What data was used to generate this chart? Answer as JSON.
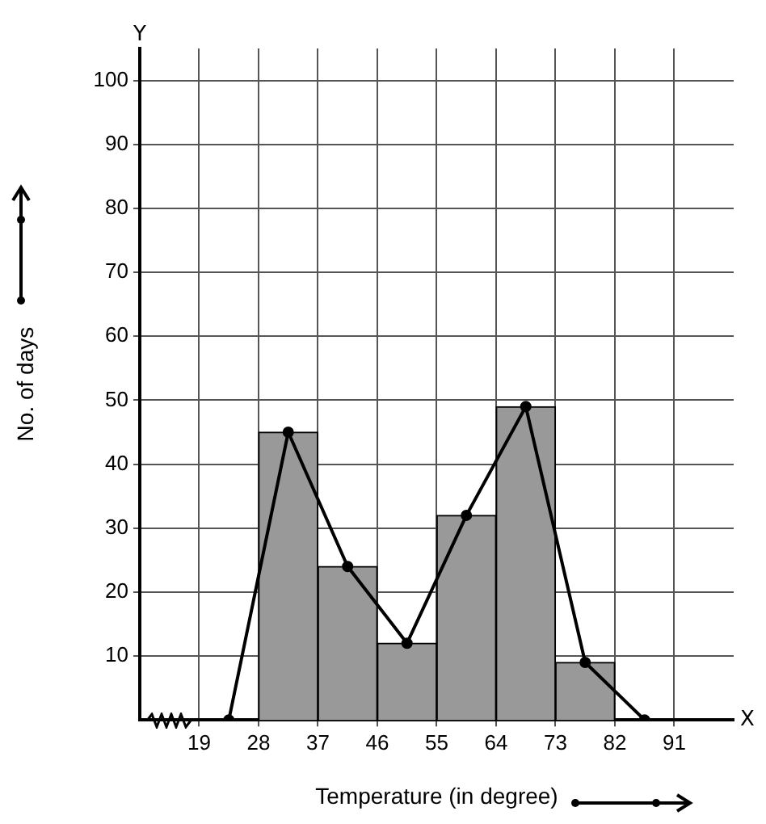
{
  "chart_data": {
    "type": "histogram",
    "xlabel": "Temperature (in degree)",
    "ylabel": "No. of days",
    "bins": [
      28,
      37,
      46,
      55,
      64,
      73,
      82
    ],
    "values": [
      45,
      24,
      12,
      32,
      49,
      9
    ],
    "color": "#999999",
    "series": [
      {
        "type": "line",
        "x": [
          23.5,
          32.5,
          41.5,
          50.5,
          59.5,
          68.5,
          77.5,
          86.5
        ],
        "values": [
          0,
          45,
          24,
          12,
          32,
          49,
          9,
          0
        ],
        "color": "#000000"
      }
    ],
    "xlim": [
      10,
      100
    ],
    "xticks": [
      19,
      28,
      37,
      46,
      55,
      64,
      73,
      82,
      91
    ],
    "ylim": [
      0,
      105
    ],
    "yticks": [
      10,
      20,
      30,
      40,
      50,
      60,
      70,
      80,
      90,
      100
    ],
    "grid": true,
    "marker": "circle",
    "line_style": "solid",
    "annotations": [
      "Y",
      "X"
    ]
  }
}
